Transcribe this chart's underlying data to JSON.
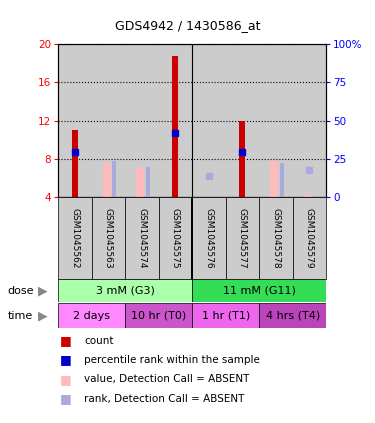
{
  "title": "GDS4942 / 1430586_at",
  "samples": [
    "GSM1045562",
    "GSM1045563",
    "GSM1045574",
    "GSM1045575",
    "GSM1045576",
    "GSM1045577",
    "GSM1045578",
    "GSM1045579"
  ],
  "red_bars": [
    11.0,
    null,
    null,
    18.8,
    null,
    12.0,
    null,
    null
  ],
  "pink_bars": [
    null,
    7.5,
    7.0,
    null,
    null,
    null,
    7.8,
    4.2
  ],
  "blue_squares": [
    8.7,
    null,
    null,
    10.7,
    null,
    8.7,
    null,
    null
  ],
  "light_blue_squares": [
    null,
    null,
    null,
    null,
    6.2,
    null,
    null,
    6.8
  ],
  "light_blue_bars": [
    null,
    7.7,
    7.1,
    null,
    null,
    null,
    7.5,
    null
  ],
  "ylim": [
    4,
    20
  ],
  "yticks": [
    4,
    8,
    12,
    16,
    20
  ],
  "y2ticks": [
    0,
    25,
    50,
    75,
    100
  ],
  "y2labels": [
    "0",
    "25",
    "50",
    "75",
    "100%"
  ],
  "dose_groups": [
    {
      "label": "3 mM (G3)",
      "start": 0,
      "end": 4,
      "color": "#aaffaa"
    },
    {
      "label": "11 mM (G11)",
      "start": 4,
      "end": 8,
      "color": "#33dd55"
    }
  ],
  "time_groups": [
    {
      "label": "2 days",
      "start": 0,
      "end": 2,
      "color": "#ff88ff"
    },
    {
      "label": "10 hr (T0)",
      "start": 2,
      "end": 4,
      "color": "#cc55cc"
    },
    {
      "label": "1 hr (T1)",
      "start": 4,
      "end": 6,
      "color": "#ee66ee"
    },
    {
      "label": "4 hrs (T4)",
      "start": 6,
      "end": 8,
      "color": "#bb44bb"
    }
  ],
  "legend_items": [
    {
      "label": "count",
      "color": "#cc0000"
    },
    {
      "label": "percentile rank within the sample",
      "color": "#0000cc"
    },
    {
      "label": "value, Detection Call = ABSENT",
      "color": "#ffbbbb"
    },
    {
      "label": "rank, Detection Call = ABSENT",
      "color": "#aaaadd"
    }
  ],
  "red_color": "#cc0000",
  "pink_color": "#ffbbbb",
  "blue_color": "#0000cc",
  "light_blue_color": "#aaaadd",
  "sample_bg": "#cccccc",
  "chart_bg": "#ffffff"
}
